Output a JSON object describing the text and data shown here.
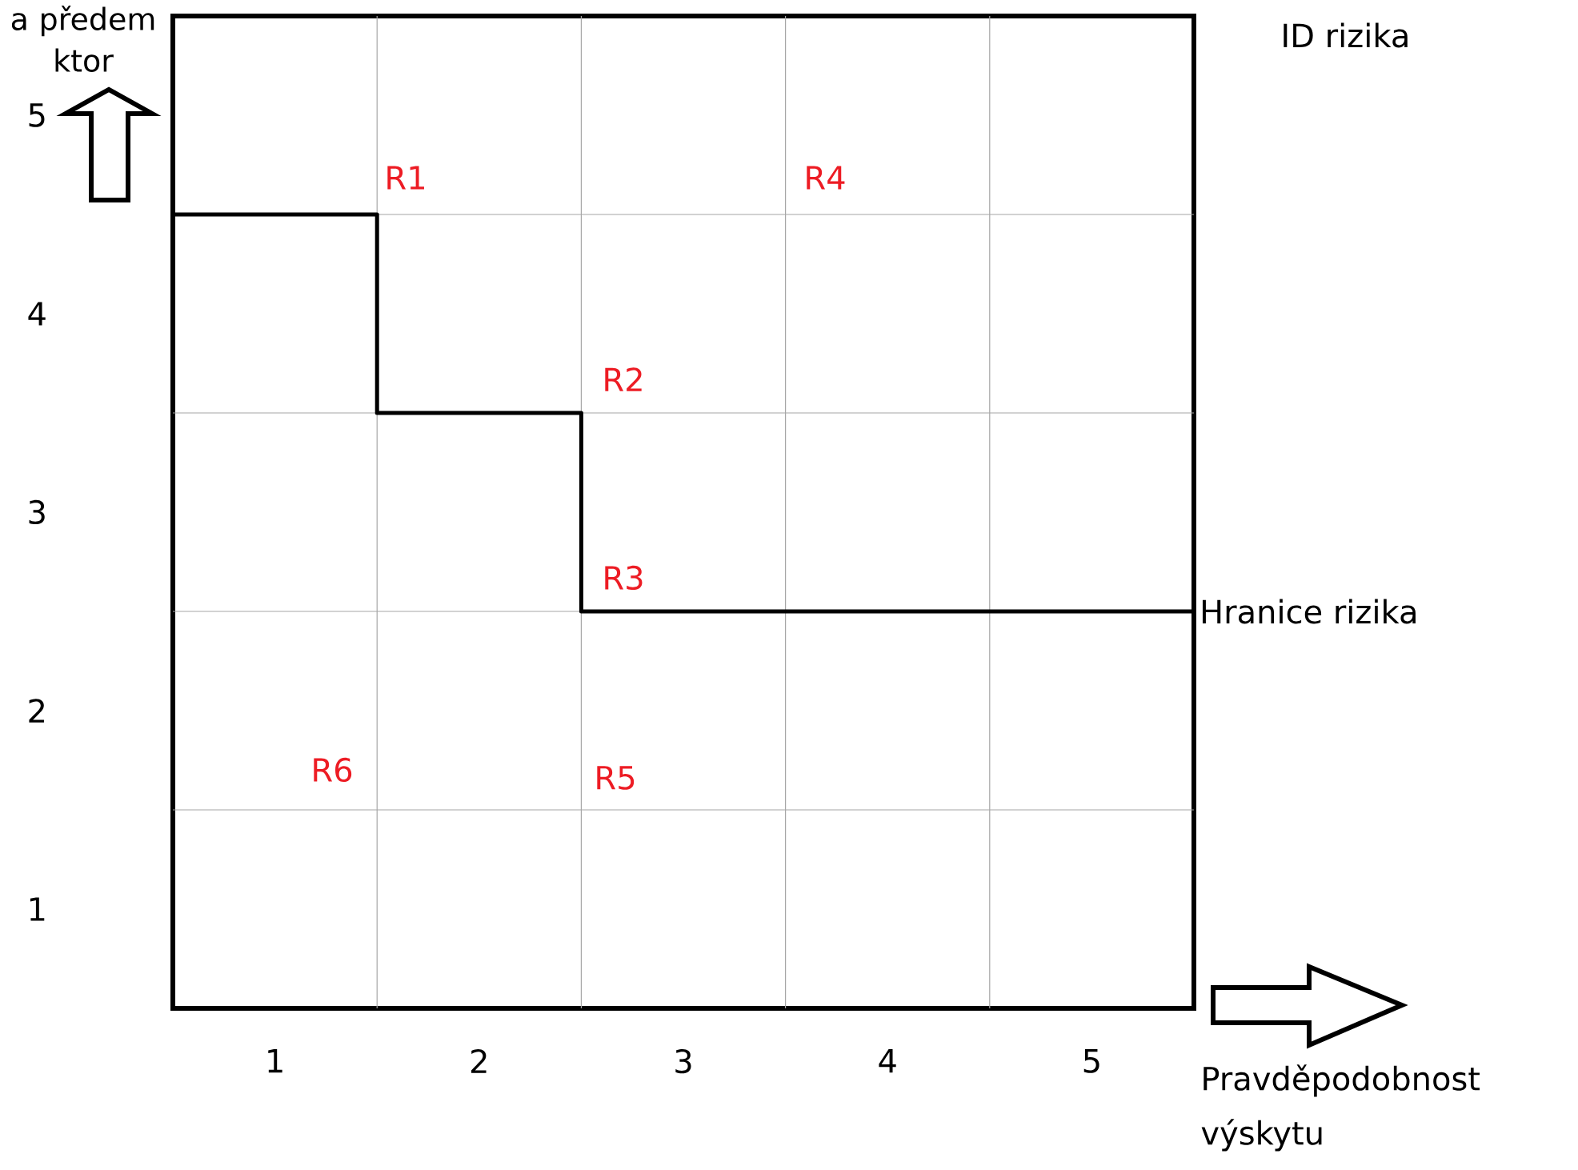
{
  "chart_data": {
    "type": "step",
    "xlabel": "Pravděpodobnost výskytu",
    "ylabel": "a předem ktor",
    "xlim": [
      0.5,
      5.5
    ],
    "ylim": [
      0.5,
      5.5
    ],
    "xticks": [
      1,
      {
        "value": 1.5,
        "label": null
      },
      2,
      {
        "value": 2.5,
        "label": null
      },
      3,
      {
        "value": 3.5,
        "label": null
      },
      4,
      {
        "value": 4.5,
        "label": null
      },
      5
    ],
    "yticks": [
      1,
      {
        "value": 1.5,
        "label": null
      },
      2,
      {
        "value": 2.5,
        "label": null
      },
      3,
      {
        "value": 3.5,
        "label": null
      },
      4,
      {
        "value": 4.5,
        "label": null
      },
      5
    ],
    "grid": true,
    "series": [
      {
        "name": "Hranice rizika",
        "color": "#000000",
        "x": [
          0.5,
          1.5,
          2.5,
          5.5
        ],
        "values": [
          4.5,
          3.5,
          2.5,
          2.5
        ]
      }
    ],
    "annotations": [
      "ID rizika",
      "R1",
      "R2",
      "R3",
      "R4",
      "R5",
      "R6"
    ]
  }
}
